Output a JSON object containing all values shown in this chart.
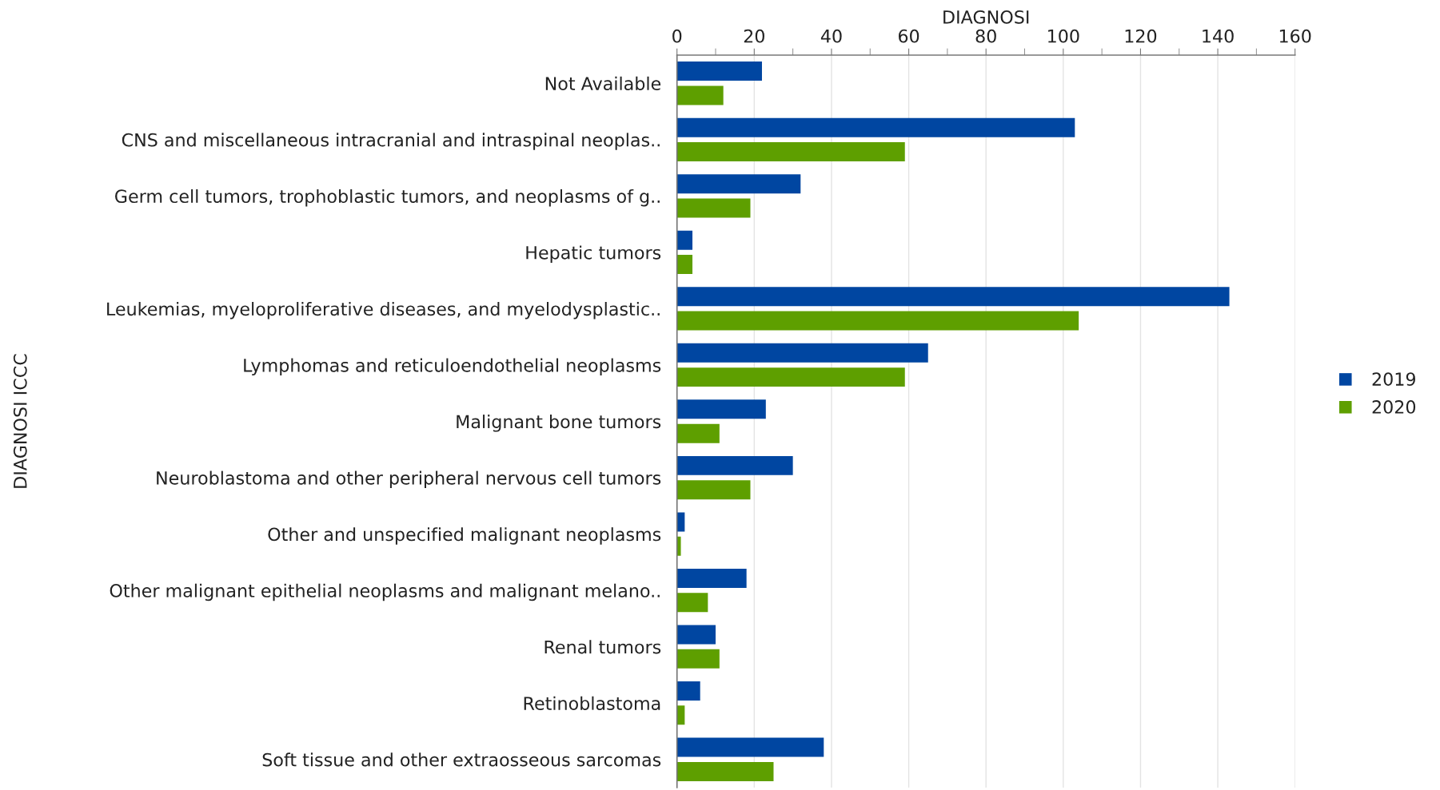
{
  "chart_data": {
    "type": "bar",
    "orientation": "horizontal",
    "xlabel": "DIAGNOSI",
    "ylabel": "DIAGNOSI ICCC",
    "categories": [
      "Not Available",
      "CNS and miscellaneous intracranial and intraspinal neoplas..",
      "Germ cell tumors, trophoblastic tumors, and neoplasms of g..",
      "Hepatic tumors",
      "Leukemias, myeloproliferative diseases, and myelodysplastic..",
      "Lymphomas and reticuloendothelial neoplasms",
      "Malignant bone tumors",
      "Neuroblastoma and other peripheral nervous cell tumors",
      "Other and unspecified malignant neoplasms",
      "Other malignant epithelial neoplasms and malignant melano..",
      "Renal tumors",
      "Retinoblastoma",
      "Soft tissue and other extraosseous sarcomas"
    ],
    "series": [
      {
        "name": "2019",
        "color": "#0046a1",
        "values": [
          22,
          103,
          32,
          4,
          143,
          65,
          23,
          30,
          2,
          18,
          10,
          6,
          38
        ]
      },
      {
        "name": "2020",
        "color": "#5e9f00",
        "values": [
          12,
          59,
          19,
          4,
          104,
          59,
          11,
          19,
          1,
          8,
          11,
          2,
          25
        ]
      }
    ],
    "xlim": [
      0,
      160
    ],
    "xticks": [
      0,
      {
        "value": 10,
        "label": null
      },
      20,
      {
        "value": 30,
        "label": null
      },
      40,
      {
        "value": 50,
        "label": null
      },
      60,
      {
        "value": 70,
        "label": null
      },
      80,
      {
        "value": 90,
        "label": null
      },
      100,
      {
        "value": 110,
        "label": null
      },
      120,
      {
        "value": 130,
        "label": null
      },
      140,
      {
        "value": 150,
        "label": null
      },
      160
    ],
    "grid": "x",
    "legend": "right"
  }
}
